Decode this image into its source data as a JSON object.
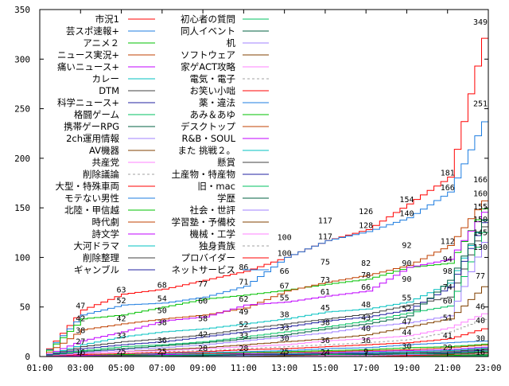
{
  "chart_data": {
    "type": "line",
    "title": "",
    "xlabel": "",
    "ylabel": "",
    "xlim": [
      1,
      23
    ],
    "ylim": [
      0,
      350
    ],
    "grid": false,
    "legend_placement": "top-left",
    "x_ticks": [
      "01:00",
      "03:00",
      "05:00",
      "07:00",
      "09:00",
      "11:00",
      "13:00",
      "15:00",
      "17:00",
      "19:00",
      "21:00",
      "23:00"
    ],
    "y_ticks": [
      "0",
      "50",
      "100",
      "150",
      "200",
      "250",
      "300",
      "350"
    ],
    "x": [
      1,
      3,
      5,
      7,
      9,
      11,
      13,
      15,
      17,
      19,
      21,
      23
    ],
    "series": [
      {
        "name": "市況1",
        "color": "#ff0000",
        "values": [
          0,
          47,
          63,
          68,
          77,
          86,
          100,
          117,
          128,
          154,
          181,
          349
        ]
      },
      {
        "name": "芸スポ速報+",
        "color": "#1c7ce0",
        "values": [
          0,
          42,
          52,
          54,
          60,
          71,
          100,
          117,
          126,
          140,
          166,
          251
        ]
      },
      {
        "name": "アニメ２",
        "color": "#00c000",
        "values": [
          0,
          38,
          42,
          50,
          58,
          62,
          67,
          73,
          78,
          90,
          94,
          160
        ]
      },
      {
        "name": "ニュース実況+",
        "color": "#c04000",
        "values": [
          0,
          27,
          33,
          38,
          42,
          49,
          66,
          75,
          82,
          92,
          112,
          166
        ]
      },
      {
        "name": "痛いニュース+",
        "color": "#c000ff",
        "values": [
          0,
          16,
          25,
          36,
          40,
          52,
          55,
          61,
          66,
          90,
          98,
          155
        ]
      },
      {
        "name": "カレー",
        "color": "#00c0c0",
        "values": [
          0,
          12,
          20,
          25,
          28,
          33,
          38,
          45,
          48,
          55,
          74,
          150
        ]
      },
      {
        "name": "DTM",
        "color": "#404040",
        "values": [
          0,
          10,
          15,
          18,
          22,
          28,
          33,
          38,
          43,
          52,
          60,
          145
        ]
      },
      {
        "name": "科学ニュース+",
        "color": "#2020a0",
        "values": [
          0,
          8,
          12,
          15,
          20,
          25,
          30,
          36,
          40,
          47,
          70,
          148
        ]
      },
      {
        "name": "格闘ゲーム",
        "color": "#00c060",
        "values": [
          0,
          6,
          10,
          12,
          15,
          20,
          25,
          30,
          36,
          44,
          51,
          140
        ]
      },
      {
        "name": "携帯ゲーRPG",
        "color": "#006040",
        "values": [
          0,
          5,
          8,
          11,
          14,
          18,
          22,
          28,
          33,
          41,
          77,
          150
        ]
      },
      {
        "name": "2ch運用情報",
        "color": "#a080ff",
        "values": [
          0,
          4,
          7,
          9,
          12,
          16,
          20,
          24,
          30,
          34,
          41,
          130
        ]
      },
      {
        "name": "AV機器",
        "color": "#804000",
        "values": [
          0,
          3,
          5,
          7,
          9,
          12,
          15,
          18,
          22,
          30,
          38,
          77
        ]
      },
      {
        "name": "共産党",
        "color": "#ff80ff",
        "values": [
          0,
          3,
          5,
          6,
          8,
          10,
          12,
          16,
          18,
          21,
          29,
          46
        ]
      },
      {
        "name": "削除議論",
        "color": "#a0a0a0",
        "dashed": true,
        "values": [
          0,
          2,
          3,
          5,
          6,
          8,
          10,
          12,
          14,
          17,
          25,
          40
        ]
      },
      {
        "name": "大型・特殊車両",
        "color": "#ff0000",
        "values": [
          0,
          2,
          3,
          4,
          5,
          7,
          8,
          10,
          12,
          14,
          18,
          30
        ]
      },
      {
        "name": "モテない男性",
        "color": "#1c7ce0",
        "values": [
          0,
          1,
          2,
          3,
          4,
          5,
          6,
          8,
          9,
          12,
          14,
          16
        ]
      },
      {
        "name": "北陸・甲信越",
        "color": "#00c000",
        "values": [
          0,
          1,
          2,
          2,
          3,
          4,
          5,
          6,
          7,
          9,
          10,
          13
        ]
      },
      {
        "name": "時代劇",
        "color": "#c04000",
        "values": [
          0,
          1,
          1,
          2,
          3,
          3,
          4,
          5,
          6,
          7,
          9,
          12
        ]
      },
      {
        "name": "詩文学",
        "color": "#c000ff",
        "values": [
          0,
          1,
          1,
          2,
          2,
          3,
          3,
          4,
          5,
          6,
          7,
          10
        ]
      },
      {
        "name": "大河ドラマ",
        "color": "#00c0c0",
        "values": [
          0,
          0,
          1,
          1,
          2,
          2,
          3,
          3,
          4,
          5,
          6,
          9
        ]
      },
      {
        "name": "削除整理",
        "color": "#404040",
        "values": [
          0,
          0,
          1,
          1,
          1,
          2,
          2,
          3,
          3,
          4,
          5,
          8
        ]
      },
      {
        "name": "ギャンブル",
        "color": "#2020a0",
        "values": [
          0,
          0,
          0,
          1,
          1,
          1,
          2,
          2,
          3,
          3,
          4,
          7
        ]
      },
      {
        "name": "初心者の質問",
        "color": "#00c060",
        "values": [
          0,
          0,
          0,
          1,
          1,
          1,
          1,
          2,
          2,
          3,
          3,
          6
        ]
      },
      {
        "name": "同人イベント",
        "color": "#006040",
        "values": [
          0,
          0,
          0,
          0,
          1,
          1,
          1,
          1,
          2,
          2,
          3,
          5
        ]
      },
      {
        "name": "机",
        "color": "#a080ff",
        "values": [
          0,
          0,
          0,
          0,
          0,
          1,
          1,
          1,
          1,
          2,
          2,
          4
        ]
      },
      {
        "name": "ソフトウェア",
        "color": "#804000",
        "values": [
          0,
          0,
          0,
          0,
          0,
          0,
          1,
          1,
          1,
          1,
          2,
          4
        ]
      },
      {
        "name": "家ゲACT攻略",
        "color": "#ff80ff",
        "values": [
          0,
          0,
          0,
          0,
          0,
          0,
          0,
          1,
          1,
          1,
          1,
          3
        ]
      },
      {
        "name": "電気・電子",
        "color": "#a0a0a0",
        "dashed": true,
        "values": [
          0,
          0,
          0,
          0,
          0,
          0,
          0,
          0,
          1,
          1,
          1,
          3
        ]
      },
      {
        "name": "お笑い小咄",
        "color": "#ff0000",
        "values": [
          0,
          0,
          0,
          0,
          0,
          0,
          0,
          0,
          0,
          1,
          1,
          2
        ]
      },
      {
        "name": "薬・違法",
        "color": "#1c7ce0",
        "values": [
          0,
          0,
          0,
          0,
          0,
          0,
          0,
          0,
          0,
          0,
          1,
          2
        ]
      },
      {
        "name": "あみ＆あゆ",
        "color": "#00c000",
        "values": [
          0,
          0,
          0,
          0,
          0,
          0,
          0,
          0,
          0,
          0,
          1,
          2
        ]
      },
      {
        "name": "デスクトップ",
        "color": "#c04000",
        "values": [
          0,
          0,
          0,
          0,
          0,
          0,
          0,
          0,
          0,
          0,
          0,
          1
        ]
      },
      {
        "name": "R&B・SOUL",
        "color": "#c000ff",
        "values": [
          0,
          0,
          0,
          0,
          0,
          0,
          0,
          0,
          0,
          0,
          0,
          1
        ]
      },
      {
        "name": "また 挑戦２。",
        "color": "#00c0c0",
        "values": [
          0,
          0,
          0,
          0,
          0,
          0,
          0,
          0,
          0,
          0,
          0,
          1
        ]
      },
      {
        "name": "懸賞",
        "color": "#404040",
        "values": [
          0,
          0,
          0,
          0,
          0,
          0,
          0,
          0,
          0,
          0,
          0,
          1
        ]
      },
      {
        "name": "土産物・特産物",
        "color": "#2020a0",
        "values": [
          0,
          0,
          0,
          0,
          0,
          0,
          0,
          0,
          0,
          0,
          0,
          1
        ]
      },
      {
        "name": "旧・mac",
        "color": "#00c060",
        "values": [
          0,
          0,
          0,
          0,
          0,
          0,
          0,
          0,
          0,
          0,
          0,
          1
        ]
      },
      {
        "name": "学歴",
        "color": "#006040",
        "values": [
          0,
          0,
          0,
          0,
          0,
          0,
          0,
          0,
          0,
          0,
          0,
          0
        ]
      },
      {
        "name": "社会・世評",
        "color": "#a080ff",
        "values": [
          0,
          0,
          0,
          0,
          0,
          0,
          0,
          0,
          0,
          0,
          0,
          0
        ]
      },
      {
        "name": "学習塾・予備校",
        "color": "#804000",
        "values": [
          0,
          0,
          0,
          0,
          0,
          0,
          0,
          0,
          0,
          0,
          0,
          0
        ]
      },
      {
        "name": "機械・工学",
        "color": "#ff80ff",
        "values": [
          0,
          0,
          0,
          0,
          0,
          0,
          0,
          0,
          0,
          0,
          0,
          0
        ]
      },
      {
        "name": "独身貴族",
        "color": "#a0a0a0",
        "dashed": true,
        "values": [
          0,
          0,
          0,
          0,
          0,
          0,
          0,
          0,
          0,
          0,
          0,
          0
        ]
      },
      {
        "name": "プロバイダー",
        "color": "#ff0000",
        "values": [
          0,
          0,
          0,
          0,
          0,
          0,
          0,
          0,
          0,
          0,
          0,
          0
        ]
      },
      {
        "name": "ネットサービス",
        "color": "#1c7ce0",
        "values": [
          0,
          0,
          0,
          0,
          0,
          0,
          0,
          0,
          0,
          0,
          0,
          0
        ]
      }
    ]
  }
}
